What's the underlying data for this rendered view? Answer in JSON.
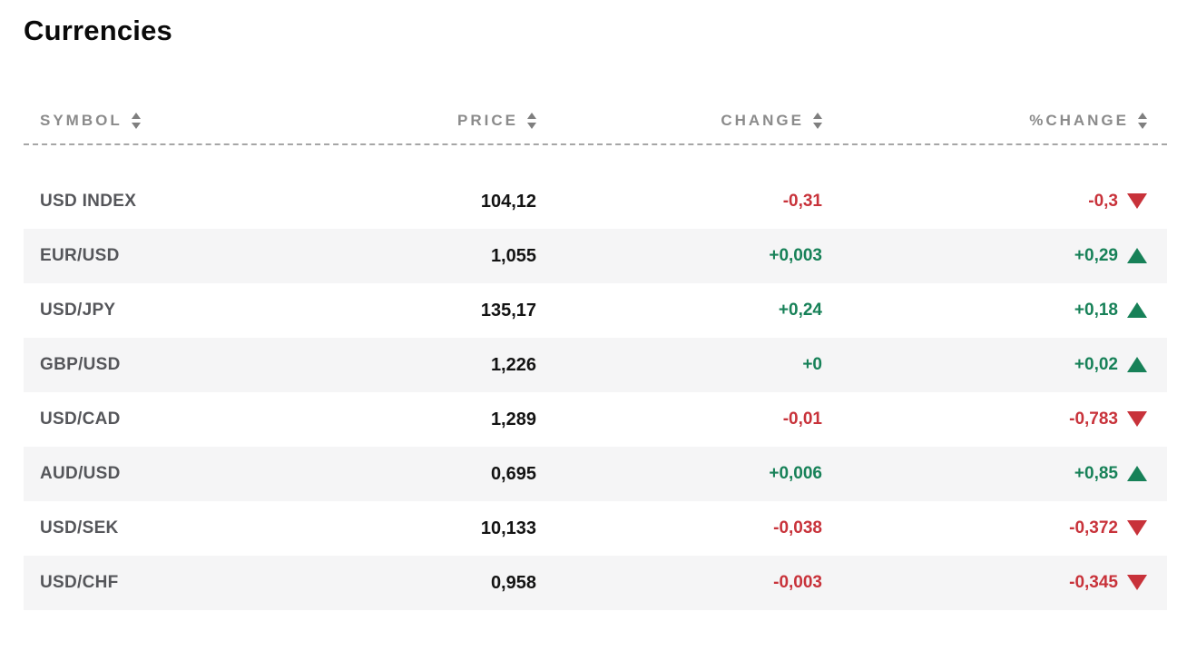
{
  "page": {
    "title": "Currencies"
  },
  "table": {
    "columns": [
      {
        "key": "symbol",
        "label": "SYMBOL",
        "align": "left",
        "sortable": true
      },
      {
        "key": "price",
        "label": "PRICE",
        "align": "right",
        "sortable": true
      },
      {
        "key": "change",
        "label": "CHANGE",
        "align": "right",
        "sortable": true
      },
      {
        "key": "pct_change",
        "label": "%CHANGE",
        "align": "right",
        "sortable": true
      }
    ],
    "rows": [
      {
        "symbol": "USD INDEX",
        "price": "104,12",
        "change": "-0,31",
        "pct_change": "-0,3",
        "direction": "down"
      },
      {
        "symbol": "EUR/USD",
        "price": "1,055",
        "change": "+0,003",
        "pct_change": "+0,29",
        "direction": "up"
      },
      {
        "symbol": "USD/JPY",
        "price": "135,17",
        "change": "+0,24",
        "pct_change": "+0,18",
        "direction": "up"
      },
      {
        "symbol": "GBP/USD",
        "price": "1,226",
        "change": "+0",
        "pct_change": "+0,02",
        "direction": "up"
      },
      {
        "symbol": "USD/CAD",
        "price": "1,289",
        "change": "-0,01",
        "pct_change": "-0,783",
        "direction": "down"
      },
      {
        "symbol": "AUD/USD",
        "price": "0,695",
        "change": "+0,006",
        "pct_change": "+0,85",
        "direction": "up"
      },
      {
        "symbol": "USD/SEK",
        "price": "10,133",
        "change": "-0,038",
        "pct_change": "-0,372",
        "direction": "down"
      },
      {
        "symbol": "USD/CHF",
        "price": "0,958",
        "change": "-0,003",
        "pct_change": "-0,345",
        "direction": "down"
      }
    ]
  },
  "icons": {
    "sort": "sort-arrows-icon",
    "up": "triangle-up-icon",
    "down": "triangle-down-icon"
  },
  "colors": {
    "positive": "#178158",
    "negative": "#c8323a",
    "row_alt_bg": "#f5f5f6",
    "header_text": "#8b8b8b",
    "symbol_text": "#55565a",
    "price_text": "#131313"
  }
}
